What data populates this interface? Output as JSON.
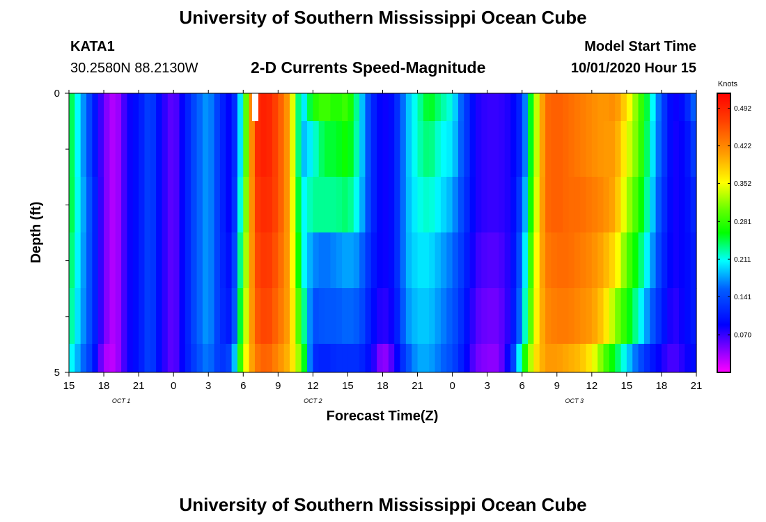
{
  "header": {
    "title": "University of Southern Mississippi Ocean Cube",
    "station": "KATA1",
    "coords": "30.2580N 88.2130W",
    "subtitle": "2-D Currents Speed-Magnitude",
    "model_label": "Model Start Time",
    "model_time": "10/01/2020 Hour 15"
  },
  "footer": {
    "title": "University of Southern Mississippi Ocean Cube"
  },
  "chart_data": {
    "type": "heatmap",
    "title": "2-D Currents Speed-Magnitude",
    "xlabel": "Forecast Time(Z)",
    "ylabel": "Depth (ft)",
    "x_start_hour": 15,
    "x_end_hour": 69,
    "x_ticks": [
      {
        "hour": 15,
        "label": "15"
      },
      {
        "hour": 18,
        "label": "18"
      },
      {
        "hour": 21,
        "label": "21"
      },
      {
        "hour": 24,
        "label": "0"
      },
      {
        "hour": 27,
        "label": "3"
      },
      {
        "hour": 30,
        "label": "6"
      },
      {
        "hour": 33,
        "label": "9"
      },
      {
        "hour": 36,
        "label": "12"
      },
      {
        "hour": 39,
        "label": "15"
      },
      {
        "hour": 42,
        "label": "18"
      },
      {
        "hour": 45,
        "label": "21"
      },
      {
        "hour": 48,
        "label": "0"
      },
      {
        "hour": 51,
        "label": "3"
      },
      {
        "hour": 54,
        "label": "6"
      },
      {
        "hour": 57,
        "label": "9"
      },
      {
        "hour": 60,
        "label": "12"
      },
      {
        "hour": 63,
        "label": "15"
      },
      {
        "hour": 66,
        "label": "18"
      },
      {
        "hour": 69,
        "label": "21"
      }
    ],
    "date_labels": [
      {
        "hour": 19.5,
        "label": "OCT 1"
      },
      {
        "hour": 36,
        "label": "OCT 2"
      },
      {
        "hour": 58.5,
        "label": "OCT 3"
      }
    ],
    "y_range": [
      0,
      5
    ],
    "y_ticks": [
      {
        "value": 0,
        "label": "0"
      },
      {
        "value": 5,
        "label": "5"
      }
    ],
    "y_minor_ticks": [
      1,
      2,
      3,
      4
    ],
    "depth_levels": 5,
    "colorbar": {
      "label": "Knots",
      "vmin": 0.0,
      "vmax": 0.52,
      "ticks": [
        0.492,
        0.422,
        0.352,
        0.281,
        0.211,
        0.141,
        0.07
      ],
      "tick_labels": [
        "0.492",
        "0.422",
        "0.352",
        "0.281",
        "0.211",
        "0.141",
        "0.070"
      ]
    },
    "anchor_hours": [
      15,
      17,
      18,
      19,
      20,
      21,
      22,
      23,
      24,
      25,
      26,
      27,
      28,
      29,
      30,
      31,
      32,
      33,
      34,
      35,
      36,
      37,
      38,
      39,
      40,
      41,
      42,
      43,
      44,
      45,
      46,
      47,
      48,
      49,
      50,
      51,
      52,
      53,
      54,
      55,
      56,
      57,
      58,
      59,
      60,
      61,
      62,
      63,
      64,
      65,
      66,
      67,
      68,
      69
    ],
    "anchor_speeds": [
      [
        0.26,
        0.12,
        0.05,
        0.02,
        0.08,
        0.1,
        0.14,
        0.08,
        0.05,
        0.1,
        0.15,
        0.18,
        0.12,
        0.08,
        0.24,
        0.48,
        0.5,
        0.46,
        0.4,
        0.18,
        0.27,
        0.29,
        0.27,
        0.29,
        0.21,
        0.12,
        0.08,
        0.1,
        0.18,
        0.22,
        0.26,
        0.23,
        0.21,
        0.14,
        0.08,
        0.07,
        0.07,
        0.08,
        0.12,
        0.3,
        0.44,
        0.45,
        0.44,
        0.43,
        0.42,
        0.41,
        0.42,
        0.37,
        0.3,
        0.23,
        0.14,
        0.08,
        0.1,
        0.17
      ],
      [
        0.26,
        0.12,
        0.05,
        0.02,
        0.08,
        0.1,
        0.14,
        0.08,
        0.05,
        0.1,
        0.15,
        0.18,
        0.12,
        0.08,
        0.24,
        0.48,
        0.5,
        0.46,
        0.4,
        0.18,
        0.21,
        0.25,
        0.25,
        0.27,
        0.21,
        0.12,
        0.08,
        0.1,
        0.18,
        0.22,
        0.24,
        0.21,
        0.2,
        0.14,
        0.08,
        0.07,
        0.07,
        0.08,
        0.12,
        0.3,
        0.44,
        0.45,
        0.44,
        0.43,
        0.42,
        0.41,
        0.41,
        0.35,
        0.3,
        0.22,
        0.14,
        0.08,
        0.09,
        0.14
      ],
      [
        0.26,
        0.13,
        0.05,
        0.02,
        0.08,
        0.1,
        0.14,
        0.08,
        0.05,
        0.1,
        0.15,
        0.18,
        0.12,
        0.08,
        0.26,
        0.47,
        0.49,
        0.46,
        0.4,
        0.2,
        0.23,
        0.23,
        0.23,
        0.24,
        0.2,
        0.12,
        0.08,
        0.1,
        0.18,
        0.21,
        0.22,
        0.2,
        0.18,
        0.13,
        0.08,
        0.07,
        0.07,
        0.08,
        0.14,
        0.31,
        0.44,
        0.45,
        0.44,
        0.44,
        0.43,
        0.42,
        0.4,
        0.33,
        0.28,
        0.21,
        0.13,
        0.08,
        0.09,
        0.12
      ],
      [
        0.25,
        0.13,
        0.05,
        0.02,
        0.08,
        0.1,
        0.14,
        0.08,
        0.05,
        0.1,
        0.15,
        0.18,
        0.12,
        0.09,
        0.28,
        0.46,
        0.48,
        0.45,
        0.4,
        0.22,
        0.17,
        0.16,
        0.17,
        0.18,
        0.17,
        0.11,
        0.08,
        0.1,
        0.18,
        0.2,
        0.2,
        0.18,
        0.16,
        0.12,
        0.07,
        0.06,
        0.06,
        0.08,
        0.16,
        0.33,
        0.43,
        0.44,
        0.44,
        0.43,
        0.42,
        0.4,
        0.37,
        0.3,
        0.25,
        0.19,
        0.12,
        0.08,
        0.09,
        0.11
      ],
      [
        0.24,
        0.13,
        0.05,
        0.02,
        0.08,
        0.1,
        0.14,
        0.08,
        0.05,
        0.1,
        0.15,
        0.18,
        0.12,
        0.1,
        0.3,
        0.45,
        0.47,
        0.44,
        0.4,
        0.26,
        0.14,
        0.15,
        0.15,
        0.16,
        0.15,
        0.1,
        0.07,
        0.09,
        0.17,
        0.19,
        0.19,
        0.17,
        0.15,
        0.11,
        0.06,
        0.05,
        0.05,
        0.08,
        0.18,
        0.34,
        0.42,
        0.43,
        0.43,
        0.42,
        0.41,
        0.38,
        0.32,
        0.27,
        0.22,
        0.16,
        0.11,
        0.07,
        0.09,
        0.11
      ],
      [
        0.22,
        0.12,
        0.03,
        0.02,
        0.08,
        0.1,
        0.14,
        0.08,
        0.05,
        0.1,
        0.14,
        0.17,
        0.12,
        0.14,
        0.33,
        0.43,
        0.45,
        0.42,
        0.39,
        0.3,
        0.12,
        0.11,
        0.12,
        0.12,
        0.12,
        0.09,
        0.03,
        0.07,
        0.14,
        0.18,
        0.18,
        0.16,
        0.14,
        0.1,
        0.05,
        0.04,
        0.04,
        0.1,
        0.24,
        0.36,
        0.41,
        0.41,
        0.4,
        0.39,
        0.36,
        0.3,
        0.25,
        0.2,
        0.15,
        0.11,
        0.08,
        0.06,
        0.08,
        0.1
      ]
    ]
  }
}
